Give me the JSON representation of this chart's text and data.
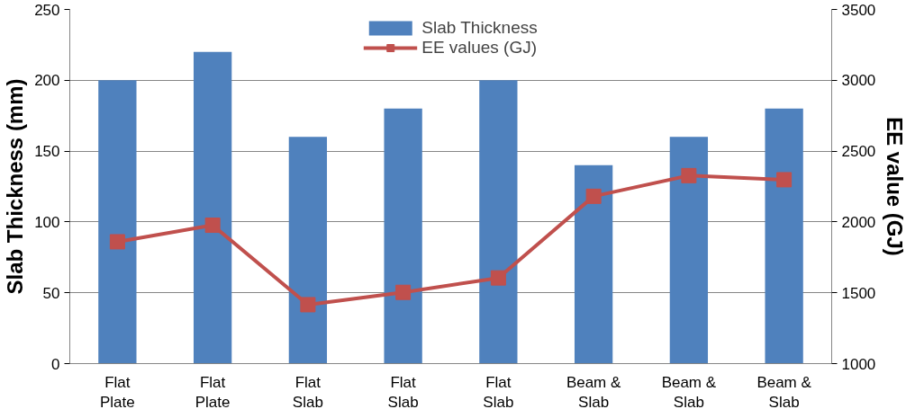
{
  "chart_data": {
    "type": "bar",
    "categories": [
      "Flat Plate",
      "Flat Plate",
      "Flat Slab",
      "Flat Slab",
      "Flat Slab",
      "Beam & Slab",
      "Beam & Slab",
      "Beam & Slab"
    ],
    "ylabel": "Slab Thickness (mm)",
    "y2label": "EE value (GJ)",
    "series": [
      {
        "name": "Slab Thickness",
        "color": "#4f81bd",
        "values": [
          200,
          220,
          160,
          180,
          200,
          140,
          160,
          180
        ]
      },
      {
        "name": "EE values (GJ)",
        "type": "line",
        "axis": "y2",
        "color": "#c0504d",
        "marker": "square",
        "values": [
          1860,
          1977,
          1416,
          1503,
          1605,
          2181,
          2327,
          2298
        ]
      }
    ],
    "ylim": [
      0,
      250
    ],
    "yticks": [
      0,
      50,
      100,
      150,
      200,
      250
    ],
    "y2lim": [
      1000,
      3500
    ],
    "y2ticks": [
      1000,
      1500,
      2000,
      2500,
      3000,
      3500
    ],
    "grid": "y",
    "legend": "top"
  }
}
